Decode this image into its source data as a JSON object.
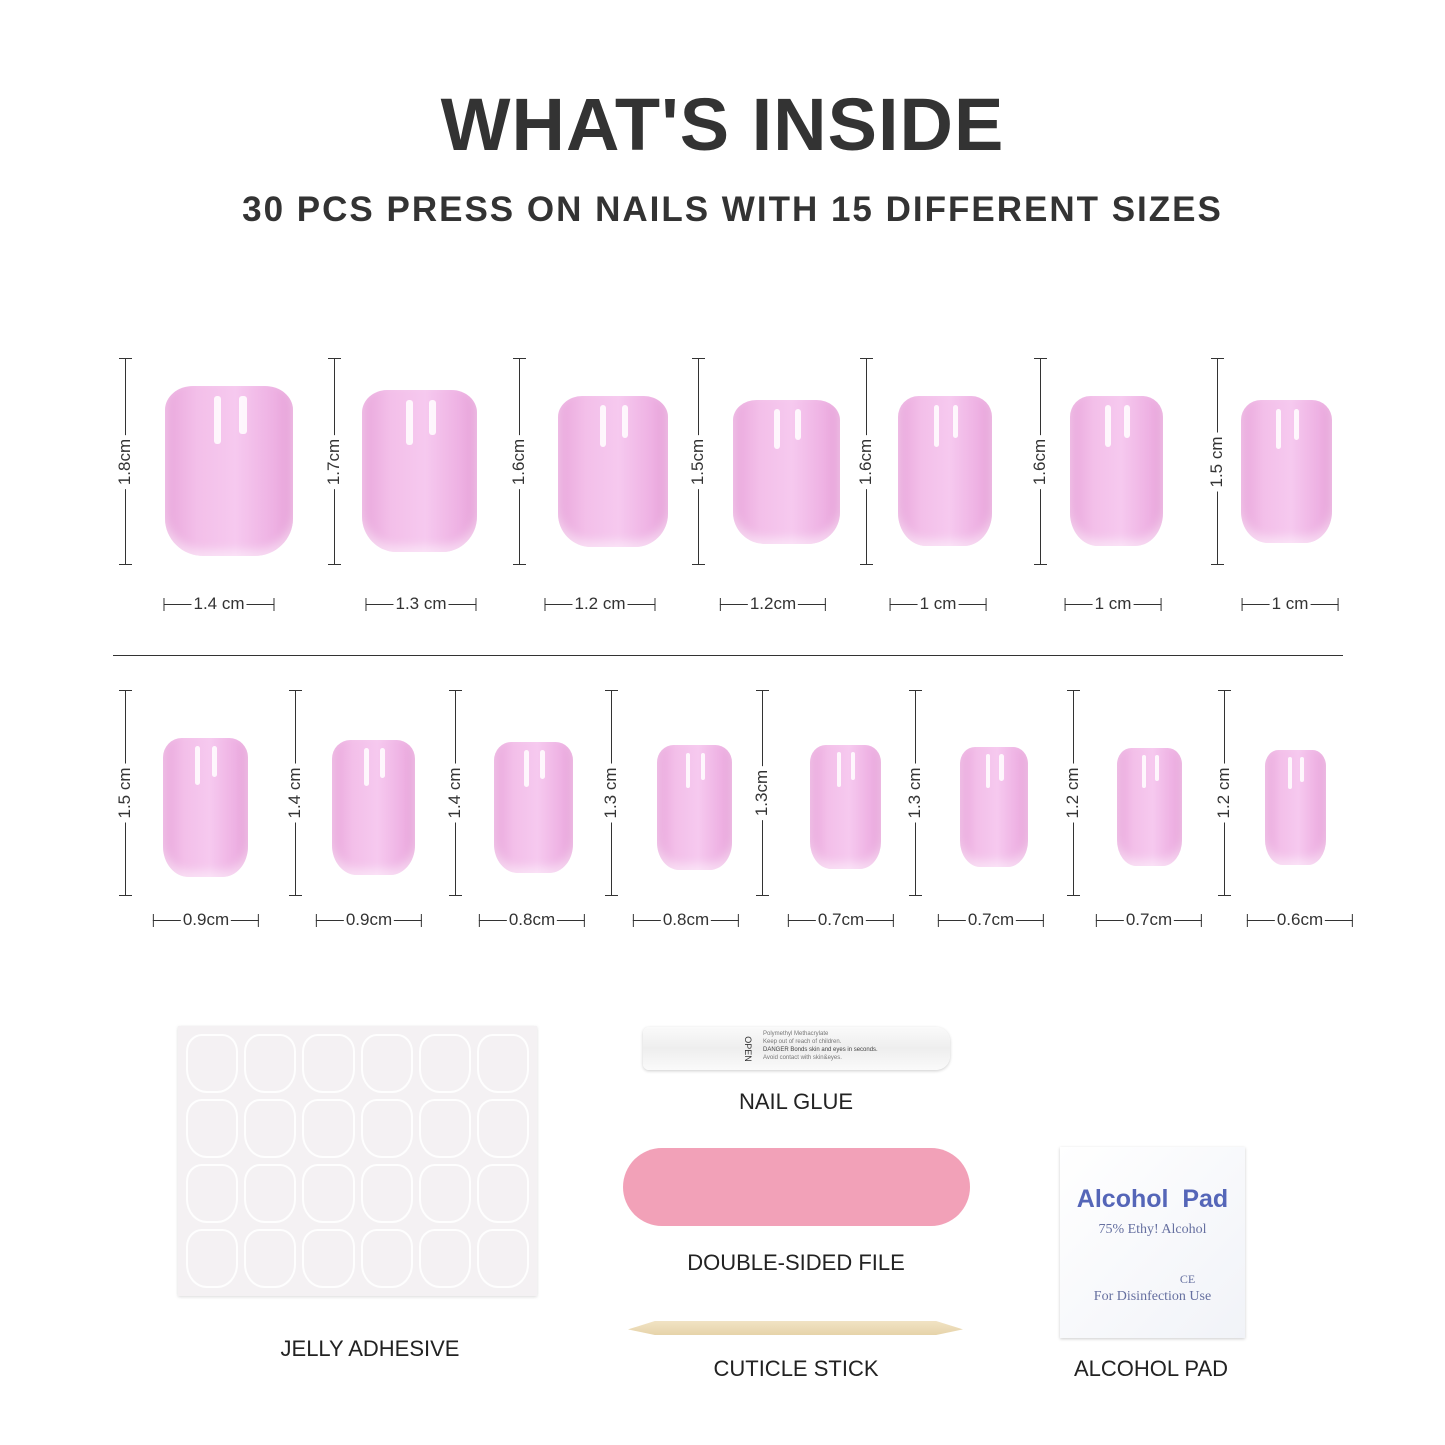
{
  "header": {
    "title": "WHAT'S INSIDE",
    "subtitle": "30 PCS PRESS ON NAILS WITH 15 DIFFERENT SIZES"
  },
  "nail_color": "#f3bfe9",
  "top_row": [
    {
      "height": "1.8cm",
      "width": "1.4 cm"
    },
    {
      "height": "1.7cm",
      "width": "1.3 cm"
    },
    {
      "height": "1.6cm",
      "width": "1.2 cm"
    },
    {
      "height": "1.5cm",
      "width": "1.2cm"
    },
    {
      "height": "1.6cm",
      "width": "1 cm"
    },
    {
      "height": "1.6cm",
      "width": "1 cm"
    },
    {
      "height": "1.5 cm",
      "width": "1 cm"
    }
  ],
  "bottom_row": [
    {
      "height": "1.5 cm",
      "width": "0.9cm"
    },
    {
      "height": "1.4 cm",
      "width": "0.9cm"
    },
    {
      "height": "1.4 cm",
      "width": "0.8cm"
    },
    {
      "height": "1.3 cm",
      "width": "0.8cm"
    },
    {
      "height": "1.3cm",
      "width": "0.7cm"
    },
    {
      "height": "1.3 cm",
      "width": "0.7cm"
    },
    {
      "height": "1.2 cm",
      "width": "0.7cm"
    },
    {
      "height": "1.2 cm",
      "width": "0.6cm"
    }
  ],
  "accessories": {
    "jelly_adhesive": "JELLY ADHESIVE",
    "nail_glue": "NAIL GLUE",
    "glue_label": {
      "chem": "Polymethyl Methacrylate",
      "l1": "Keep out of reach of children.",
      "l2": "DANGER Bonds skin and eyes in seconds.",
      "l3": "Avoid contact with skin&eyes.",
      "open": "OPEN"
    },
    "file": "DOUBLE-SIDED FILE",
    "file_color": "#f2a1b8",
    "cuticle_stick": "CUTICLE STICK",
    "alcohol_pad": "ALCOHOL PAD",
    "pad_text": {
      "brand": "Alcohol  Pad",
      "sub": "75% Ethy! Alcohol",
      "mark": "CE",
      "use": "For Disinfection Use"
    }
  }
}
